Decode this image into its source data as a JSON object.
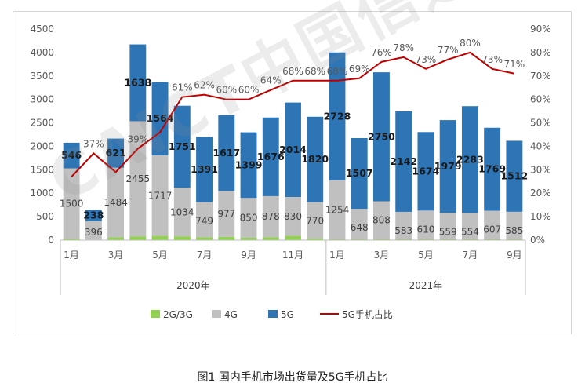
{
  "caption": "图1  国内手机市场出货量及5G手机占比",
  "watermark": "CAICT中国信通院",
  "chart_data": {
    "type": "bar",
    "stacked": true,
    "categories": [
      "2020-01",
      "2020-02",
      "2020-03",
      "2020-04",
      "2020-05",
      "2020-06",
      "2020-07",
      "2020-08",
      "2020-09",
      "2020-10",
      "2020-11",
      "2020-12",
      "2021-01",
      "2021-02",
      "2021-03",
      "2021-04",
      "2021-05",
      "2021-06",
      "2021-07",
      "2021-08",
      "2021-09"
    ],
    "x_tick_labels": [
      "1月",
      "",
      "3月",
      "",
      "5月",
      "",
      "7月",
      "",
      "9月",
      "",
      "11月",
      "",
      "1月",
      "",
      "3月",
      "",
      "5月",
      "",
      "7月",
      "",
      "9月"
    ],
    "year_groups": [
      {
        "label": "2020年",
        "start": 0,
        "end": 11
      },
      {
        "label": "2021年",
        "start": 12,
        "end": 20
      }
    ],
    "series": [
      {
        "name": "2G/3G",
        "kind": "bar",
        "color": "#92d050",
        "values": [
          30,
          10,
          60,
          80,
          90,
          80,
          60,
          70,
          50,
          60,
          90,
          40,
          20,
          20,
          20,
          20,
          20,
          20,
          20,
          20,
          20
        ]
      },
      {
        "name": "4G",
        "kind": "bar",
        "color": "#c0c0c0",
        "values": [
          1500,
          396,
          1484,
          2455,
          1717,
          1034,
          749,
          977,
          850,
          878,
          830,
          770,
          1254,
          648,
          808,
          583,
          610,
          559,
          554,
          607,
          585
        ]
      },
      {
        "name": "5G",
        "kind": "bar",
        "color": "#2e75b6",
        "values": [
          546,
          238,
          621,
          1638,
          1564,
          1751,
          1391,
          1617,
          1399,
          1676,
          2014,
          1820,
          2728,
          1507,
          2750,
          2142,
          1674,
          1979,
          2283,
          1769,
          1512
        ]
      },
      {
        "name": "5G手机占比",
        "kind": "line",
        "axis": "right",
        "color": "#c00000",
        "values": [
          27,
          37,
          29,
          39,
          46,
          61,
          62,
          60,
          60,
          64,
          68,
          68,
          68,
          69,
          76,
          78,
          73,
          77,
          80,
          73,
          71
        ]
      }
    ],
    "labels_4g": [
      "1500",
      "396",
      "1484",
      "2455",
      "1717",
      "1034",
      "749",
      "977",
      "850",
      "878",
      "830",
      "770",
      "1254",
      "648",
      "808",
      "583",
      "610",
      "559",
      "554",
      "607",
      "585"
    ],
    "labels_5g": [
      "546",
      "238",
      "621",
      "1638",
      "1564",
      "1751",
      "1391",
      "1617",
      "1399",
      "1676",
      "2014",
      "1820",
      "2728",
      "1507",
      "2750",
      "2142",
      "1674",
      "1979",
      "2283",
      "1769",
      "1512"
    ],
    "labels_pct": [
      "",
      "37%",
      "",
      "39%",
      "",
      "61%",
      "62%",
      "60%",
      "60%",
      "64%",
      "68%",
      "68%",
      "68%",
      "69%",
      "76%",
      "78%",
      "73%",
      "77%",
      "80%",
      "73%",
      "71%"
    ],
    "y_left": {
      "min": 0,
      "max": 4500,
      "step": 500,
      "ticks": [
        "0",
        "500",
        "1000",
        "1500",
        "2000",
        "2500",
        "3000",
        "3500",
        "4000",
        "4500"
      ]
    },
    "y_right": {
      "min": 0,
      "max": 90,
      "step": 10,
      "ticks": [
        "0%",
        "10%",
        "20%",
        "30%",
        "40%",
        "50%",
        "60%",
        "70%",
        "80%",
        "90%"
      ]
    },
    "legend": {
      "position": "bottom",
      "items": [
        {
          "label": "2G/3G",
          "color": "#92d050",
          "kind": "bar"
        },
        {
          "label": "4G",
          "color": "#c0c0c0",
          "kind": "bar"
        },
        {
          "label": "5G",
          "color": "#2e75b6",
          "kind": "bar"
        },
        {
          "label": "5G手机占比",
          "color": "#c00000",
          "kind": "line"
        }
      ]
    },
    "grid": false
  }
}
